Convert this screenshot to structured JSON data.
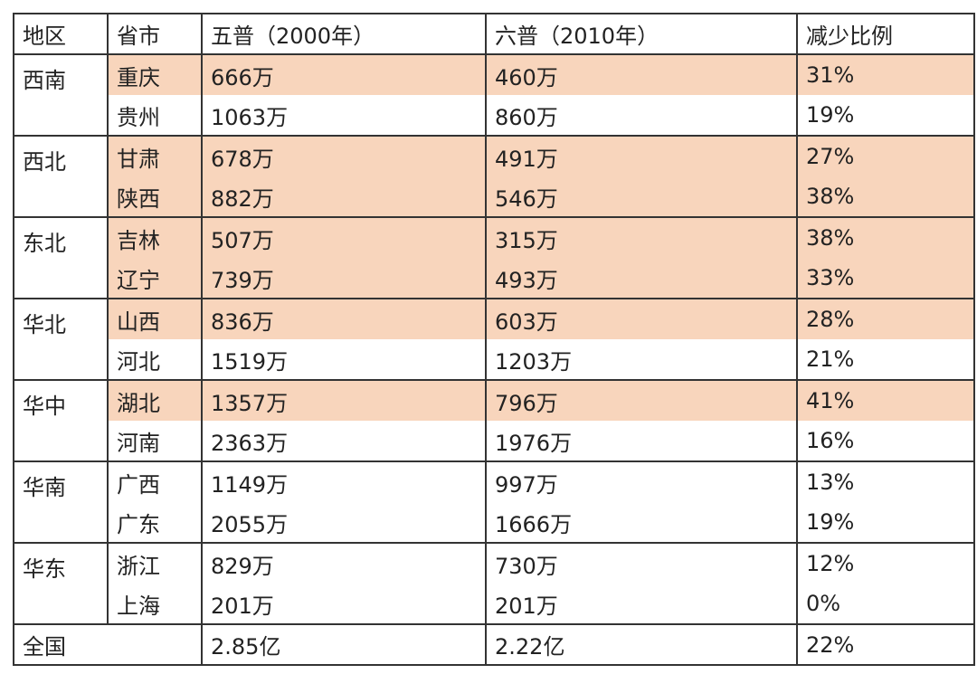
{
  "table": {
    "highlight_color": "#f8d5bc",
    "header": [
      "地区",
      "省市",
      "五普（2000年）",
      "六普（2010年）",
      "减少比例"
    ],
    "groups": [
      {
        "region": "西南",
        "rows": [
          {
            "province": "重庆",
            "y2000": "666万",
            "y2010": "460万",
            "decrease": "31%",
            "highlighted": true
          },
          {
            "province": "贵州",
            "y2000": "1063万",
            "y2010": "860万",
            "decrease": "19%",
            "highlighted": false
          }
        ]
      },
      {
        "region": "西北",
        "rows": [
          {
            "province": "甘肃",
            "y2000": "678万",
            "y2010": "491万",
            "decrease": "27%",
            "highlighted": true
          },
          {
            "province": "陕西",
            "y2000": "882万",
            "y2010": "546万",
            "decrease": "38%",
            "highlighted": true
          }
        ]
      },
      {
        "region": "东北",
        "rows": [
          {
            "province": "吉林",
            "y2000": "507万",
            "y2010": "315万",
            "decrease": "38%",
            "highlighted": true
          },
          {
            "province": "辽宁",
            "y2000": "739万",
            "y2010": "493万",
            "decrease": "33%",
            "highlighted": true
          }
        ]
      },
      {
        "region": "华北",
        "rows": [
          {
            "province": "山西",
            "y2000": "836万",
            "y2010": "603万",
            "decrease": "28%",
            "highlighted": true
          },
          {
            "province": "河北",
            "y2000": "1519万",
            "y2010": "1203万",
            "decrease": "21%",
            "highlighted": false
          }
        ]
      },
      {
        "region": "华中",
        "rows": [
          {
            "province": "湖北",
            "y2000": "1357万",
            "y2010": "796万",
            "decrease": "41%",
            "highlighted": true
          },
          {
            "province": "河南",
            "y2000": "2363万",
            "y2010": "1976万",
            "decrease": "16%",
            "highlighted": false
          }
        ]
      },
      {
        "region": "华南",
        "rows": [
          {
            "province": "广西",
            "y2000": "1149万",
            "y2010": "997万",
            "decrease": "13%",
            "highlighted": false
          },
          {
            "province": "广东",
            "y2000": "2055万",
            "y2010": "1666万",
            "decrease": "19%",
            "highlighted": false
          }
        ]
      },
      {
        "region": "华东",
        "rows": [
          {
            "province": "浙江",
            "y2000": "829万",
            "y2010": "730万",
            "decrease": "12%",
            "highlighted": false
          },
          {
            "province": "上海",
            "y2000": "201万",
            "y2010": "201万",
            "decrease": "0%",
            "highlighted": false
          }
        ]
      }
    ],
    "total": {
      "label": "全国",
      "y2000": "2.85亿",
      "y2010": "2.22亿",
      "decrease": "22%"
    }
  }
}
